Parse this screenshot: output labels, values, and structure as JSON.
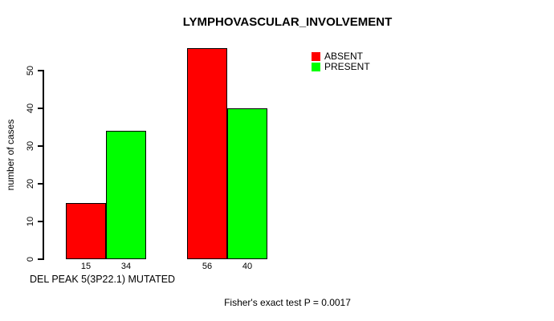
{
  "figure": {
    "background": "#ffffff",
    "axis_color": "#000000"
  },
  "chart_data": {
    "type": "bar",
    "title": "LYMPHOVASCULAR_INVOLVEMENT",
    "ylabel": "number of cases",
    "xlabel": "DEL PEAK 5(3P22.1) MUTATED",
    "annotation": "Fisher's exact test P = 0.0017",
    "yticks": [
      0,
      10,
      20,
      30,
      40,
      50
    ],
    "ylim": [
      0,
      56
    ],
    "grid": false,
    "n_groups": 2,
    "series": [
      {
        "name": "ABSENT",
        "color": "#ff0000",
        "values": [
          15,
          56
        ]
      },
      {
        "name": "PRESENT",
        "color": "#00ff00",
        "values": [
          34,
          40
        ]
      }
    ],
    "bar_value_labels": [
      "15",
      "34",
      "56",
      "40"
    ],
    "legend": {
      "position": "top-right",
      "entries": [
        {
          "label": "ABSENT",
          "color": "#ff0000"
        },
        {
          "label": "PRESENT",
          "color": "#00ff00"
        }
      ]
    }
  }
}
